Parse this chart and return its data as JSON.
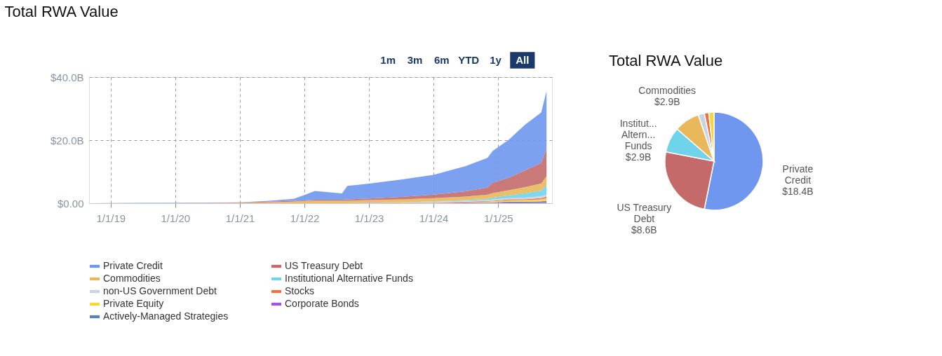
{
  "chart_data": [
    {
      "type": "area",
      "title": "Total RWA Value",
      "stacked": true,
      "annotations": [
        "1m",
        "3m",
        "6m",
        "YTD",
        "1y",
        "All"
      ],
      "x": [
        "2018-09",
        "2019-06",
        "2020-06",
        "2021-01",
        "2021-06",
        "2021-11",
        "2022-01",
        "2022-03",
        "2022-08",
        "2022-09",
        "2023-01",
        "2023-07",
        "2024-01",
        "2024-07",
        "2024-11",
        "2024-12",
        "2025-03",
        "2025-06",
        "2025-09",
        "2025-10"
      ],
      "xlim": [
        "2018-09-01",
        "2025-11-01"
      ],
      "xticks": [
        {
          "value": "2019-01-01",
          "label": "1/1/19"
        },
        {
          "value": "2020-01-01",
          "label": "1/1/20"
        },
        {
          "value": "2021-01-01",
          "label": "1/1/21"
        },
        {
          "value": "2022-01-01",
          "label": "1/1/22"
        },
        {
          "value": "2023-01-01",
          "label": "1/1/23"
        },
        {
          "value": "2024-01-01",
          "label": "1/1/24"
        },
        {
          "value": "2025-01-01",
          "label": "1/1/25"
        }
      ],
      "ylim": [
        0,
        40
      ],
      "yticks": [
        {
          "value": 0,
          "label": "$0.00"
        },
        {
          "value": 20,
          "label": "$20.0B"
        },
        {
          "value": 40,
          "label": "$40.0B"
        }
      ],
      "grid": true,
      "legend": "bottom",
      "series": [
        {
          "name": "Actively-Managed Strategies",
          "color": "#5b84a8",
          "values": [
            0,
            0,
            0,
            0,
            0,
            0,
            0,
            0,
            0,
            0,
            0,
            0,
            0,
            0,
            0.1,
            0.1,
            0.2,
            0.2,
            0.3,
            0.4
          ]
        },
        {
          "name": "Corporate Bonds",
          "color": "#9b59e0",
          "values": [
            0,
            0,
            0,
            0,
            0,
            0,
            0,
            0,
            0,
            0,
            0.1,
            0.1,
            0.1,
            0.2,
            0.2,
            0.2,
            0.3,
            0.3,
            0.3,
            0.4
          ]
        },
        {
          "name": "Private Equity",
          "color": "#f5d838",
          "values": [
            0,
            0,
            0,
            0,
            0,
            0,
            0,
            0,
            0,
            0,
            0,
            0.1,
            0.1,
            0.2,
            0.2,
            0.3,
            0.4,
            0.5,
            0.6,
            0.8
          ]
        },
        {
          "name": "Stocks",
          "color": "#f07040",
          "values": [
            0,
            0,
            0,
            0,
            0,
            0,
            0,
            0,
            0,
            0,
            0,
            0,
            0.1,
            0.1,
            0.2,
            0.2,
            0.3,
            0.3,
            0.4,
            0.5
          ]
        },
        {
          "name": "non-US Government Debt",
          "color": "#c8d3e3",
          "values": [
            0,
            0,
            0,
            0,
            0,
            0,
            0,
            0,
            0,
            0,
            0.1,
            0.1,
            0.2,
            0.3,
            0.3,
            0.4,
            0.4,
            0.5,
            0.6,
            0.7
          ]
        },
        {
          "name": "Institutional Alternative Funds",
          "color": "#6fd4ea",
          "values": [
            0,
            0,
            0,
            0,
            0,
            0,
            0,
            0,
            0,
            0,
            0,
            0,
            0.1,
            0.2,
            0.4,
            0.6,
            0.9,
            1.3,
            1.8,
            2.9
          ]
        },
        {
          "name": "Commodities",
          "color": "#e8b85a",
          "values": [
            0,
            0,
            0.1,
            0.1,
            0.3,
            0.5,
            0.7,
            0.8,
            0.8,
            0.8,
            0.8,
            0.9,
            1.0,
            1.1,
            1.3,
            1.4,
            1.6,
            2.0,
            2.3,
            2.9
          ]
        },
        {
          "name": "US Treasury Debt",
          "color": "#c46a6a",
          "values": [
            0,
            0,
            0,
            0.1,
            0.2,
            0.3,
            0.2,
            0.3,
            0.3,
            0.4,
            0.5,
            0.8,
            1.1,
            1.7,
            2.3,
            3.3,
            4.0,
            5.3,
            6.5,
            8.6
          ]
        },
        {
          "name": "Private Credit",
          "color": "#6f97f0",
          "values": [
            0,
            0.1,
            0.1,
            0.1,
            0.2,
            0.6,
            1.7,
            2.8,
            2.0,
            4.3,
            4.7,
            5.5,
            6.3,
            8.0,
            9.4,
            10.1,
            12.0,
            14.5,
            16.0,
            18.4
          ]
        }
      ]
    },
    {
      "type": "pie",
      "title": "Total RWA Value",
      "categories": [
        "Private\nCredit",
        "US Treasury\nDebt",
        "Institut...\nAltern...\nFunds",
        "Commodities",
        null,
        null,
        null
      ],
      "values": [
        18.4,
        8.6,
        2.9,
        2.9,
        0.7,
        0.5,
        0.6
      ],
      "value_labels": [
        "$18.4B",
        "$8.6B",
        "$2.9B",
        "$2.9B",
        null,
        null,
        null
      ],
      "colors": [
        "#6f97f0",
        "#c46a6a",
        "#6fd4ea",
        "#e8b85a",
        "#c8d3e3",
        "#f07040",
        "#f5d838"
      ]
    }
  ]
}
